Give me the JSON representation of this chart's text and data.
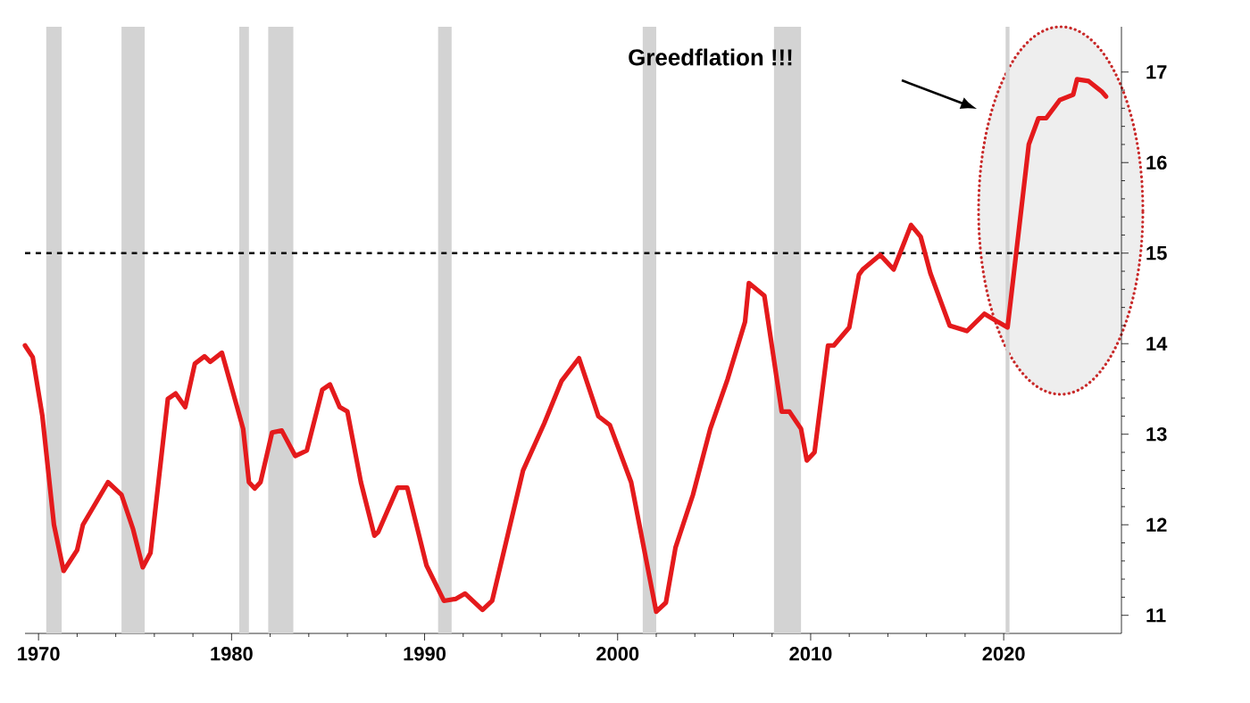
{
  "chart_data": {
    "type": "line",
    "xlim": [
      1969.3,
      2026.1
    ],
    "ylim": [
      10.8,
      17.5
    ],
    "xticks": [
      1970,
      1980,
      1990,
      2000,
      2010,
      2020
    ],
    "yticks": [
      11,
      12,
      13,
      14,
      15,
      16,
      17
    ],
    "series": [
      {
        "color": "#e41a1c",
        "x": [
          1969.3,
          1969.7,
          1970.2,
          1970.8,
          1971.3,
          1972.0,
          1972.3,
          1973.6,
          1974.3,
          1974.9,
          1975.4,
          1975.8,
          1976.7,
          1977.1,
          1977.6,
          1978.1,
          1978.6,
          1978.9,
          1979.5,
          1980.6,
          1980.9,
          1981.2,
          1981.5,
          1982.1,
          1982.6,
          1983.3,
          1983.9,
          1984.7,
          1985.1,
          1985.6,
          1986.0,
          1986.7,
          1987.4,
          1987.6,
          1988.6,
          1989.1,
          1990.1,
          1991.0,
          1991.6,
          1992.1,
          1993.0,
          1993.5,
          1995.1,
          1996.2,
          1997.1,
          1998.0,
          1999.0,
          1999.6,
          2000.7,
          2002.0,
          2002.5,
          2003.0,
          2003.9,
          2004.8,
          2005.7,
          2006.6,
          2006.8,
          2007.6,
          2008.5,
          2008.9,
          2009.5,
          2009.8,
          2010.2,
          2010.9,
          2011.2,
          2012.0,
          2012.5,
          2012.7,
          2013.6,
          2014.3,
          2015.2,
          2015.7,
          2016.2,
          2017.2,
          2018.1,
          2019.0,
          2019.7,
          2020.2,
          2021.3,
          2021.8,
          2022.2,
          2022.9,
          2023.6,
          2023.8,
          2024.4,
          2025.1,
          2025.3
        ],
        "values": [
          13.98,
          13.85,
          13.2,
          12.0,
          11.49,
          11.72,
          12.0,
          12.47,
          12.33,
          11.95,
          11.53,
          11.69,
          13.39,
          13.45,
          13.3,
          13.78,
          13.86,
          13.8,
          13.9,
          13.06,
          12.47,
          12.4,
          12.47,
          13.02,
          13.04,
          12.76,
          12.82,
          13.49,
          13.55,
          13.3,
          13.25,
          12.47,
          11.88,
          11.92,
          12.41,
          12.41,
          11.55,
          11.16,
          11.18,
          11.24,
          11.06,
          11.16,
          12.6,
          13.12,
          13.59,
          13.84,
          13.2,
          13.1,
          12.47,
          11.04,
          11.14,
          11.75,
          12.33,
          13.06,
          13.61,
          14.24,
          14.67,
          14.53,
          13.25,
          13.25,
          13.06,
          12.71,
          12.8,
          13.98,
          13.98,
          14.18,
          14.76,
          14.82,
          14.98,
          14.82,
          15.31,
          15.18,
          14.78,
          14.2,
          14.14,
          14.33,
          14.24,
          14.18,
          16.2,
          16.49,
          16.49,
          16.69,
          16.75,
          16.92,
          16.9,
          16.78,
          16.73
        ]
      }
    ],
    "ref_lines": [
      {
        "axis": "y",
        "value": 15,
        "color": "#000000",
        "line_style": "dashed"
      }
    ],
    "bands": [
      {
        "axis": "x",
        "from": 1970.4,
        "to": 1971.2,
        "color": "#d3d3d3"
      },
      {
        "axis": "x",
        "from": 1974.3,
        "to": 1975.5,
        "color": "#d3d3d3"
      },
      {
        "axis": "x",
        "from": 1980.4,
        "to": 1980.9,
        "color": "#d3d3d3"
      },
      {
        "axis": "x",
        "from": 1981.9,
        "to": 1983.2,
        "color": "#d3d3d3"
      },
      {
        "axis": "x",
        "from": 1990.7,
        "to": 1991.4,
        "color": "#d3d3d3"
      },
      {
        "axis": "x",
        "from": 2001.3,
        "to": 2002.0,
        "color": "#d3d3d3"
      },
      {
        "axis": "x",
        "from": 2008.1,
        "to": 2009.5,
        "color": "#d3d3d3"
      },
      {
        "axis": "x",
        "from": 2020.1,
        "to": 2020.3,
        "color": "#d3d3d3"
      }
    ],
    "annotations": [
      "Greedflation !!!"
    ],
    "grid": false,
    "marker": "none",
    "line_style": "solid"
  }
}
